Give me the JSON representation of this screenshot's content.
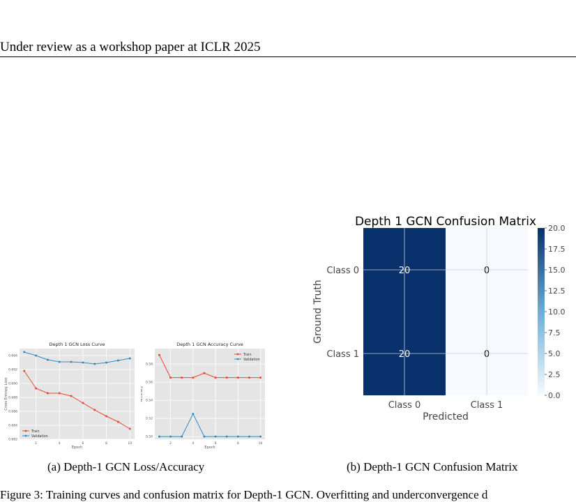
{
  "header": {
    "text": "Under review as a workshop paper at ICLR 2025"
  },
  "captions": {
    "a": "(a) Depth-1 GCN Loss/Accuracy",
    "b": "(b) Depth-1 GCN Confusion Matrix"
  },
  "bottom_text": "Figure 3: Training curves and confusion matrix for Depth-1 GCN. Overfitting and underconvergence d",
  "chart_data": [
    {
      "type": "line",
      "title": "Depth 1 GCN Loss Curve",
      "xlabel": "Epoch",
      "ylabel": "Cross Entropy Loss",
      "x": [
        1,
        2,
        3,
        4,
        5,
        6,
        7,
        8,
        9,
        10
      ],
      "xticks": [
        2,
        4,
        6,
        8,
        10
      ],
      "yticks": [
        0.682,
        0.684,
        0.686,
        0.688,
        0.69,
        0.692,
        0.694
      ],
      "ylim": [
        0.682,
        0.695
      ],
      "grid": true,
      "legend": "bottom-left",
      "series": [
        {
          "name": "Train",
          "color": "#e24a33",
          "values": [
            0.6918,
            0.6893,
            0.6886,
            0.6886,
            0.6882,
            0.6872,
            0.6862,
            0.6853,
            0.6845,
            0.6835
          ]
        },
        {
          "name": "Validation",
          "color": "#348abd",
          "values": [
            0.6945,
            0.694,
            0.6934,
            0.6931,
            0.6931,
            0.693,
            0.6928,
            0.693,
            0.6933,
            0.6936
          ]
        }
      ]
    },
    {
      "type": "line",
      "title": "Depth 1 GCN Accuracy Curve",
      "xlabel": "Epoch",
      "ylabel": "Accuracy",
      "x": [
        1,
        2,
        3,
        4,
        5,
        6,
        7,
        8,
        9,
        10
      ],
      "xticks": [
        2,
        4,
        6,
        8,
        10
      ],
      "yticks": [
        0.5,
        0.52,
        0.54,
        0.56,
        0.58
      ],
      "ylim": [
        0.497,
        0.597
      ],
      "grid": true,
      "legend": "top-right",
      "series": [
        {
          "name": "Train",
          "color": "#e24a33",
          "values": [
            0.59,
            0.565,
            0.565,
            0.565,
            0.57,
            0.565,
            0.565,
            0.565,
            0.565,
            0.565
          ]
        },
        {
          "name": "Validation",
          "color": "#348abd",
          "values": [
            0.5,
            0.5,
            0.5,
            0.525,
            0.5,
            0.5,
            0.5,
            0.5,
            0.5,
            0.5
          ]
        }
      ]
    },
    {
      "type": "heatmap",
      "title": "Depth 1 GCN Confusion Matrix",
      "xlabel": "Predicted",
      "ylabel": "Ground Truth",
      "x_categories": [
        "Class 0",
        "Class 1"
      ],
      "y_categories": [
        "Class 0",
        "Class 1"
      ],
      "values": [
        [
          20,
          0
        ],
        [
          20,
          0
        ]
      ],
      "colorbar_ticks": [
        "0.0",
        "2.5",
        "5.0",
        "7.5",
        "10.0",
        "12.5",
        "15.0",
        "17.5",
        "20.0"
      ],
      "colormap": "Blues",
      "vmin": 0,
      "vmax": 20
    }
  ]
}
